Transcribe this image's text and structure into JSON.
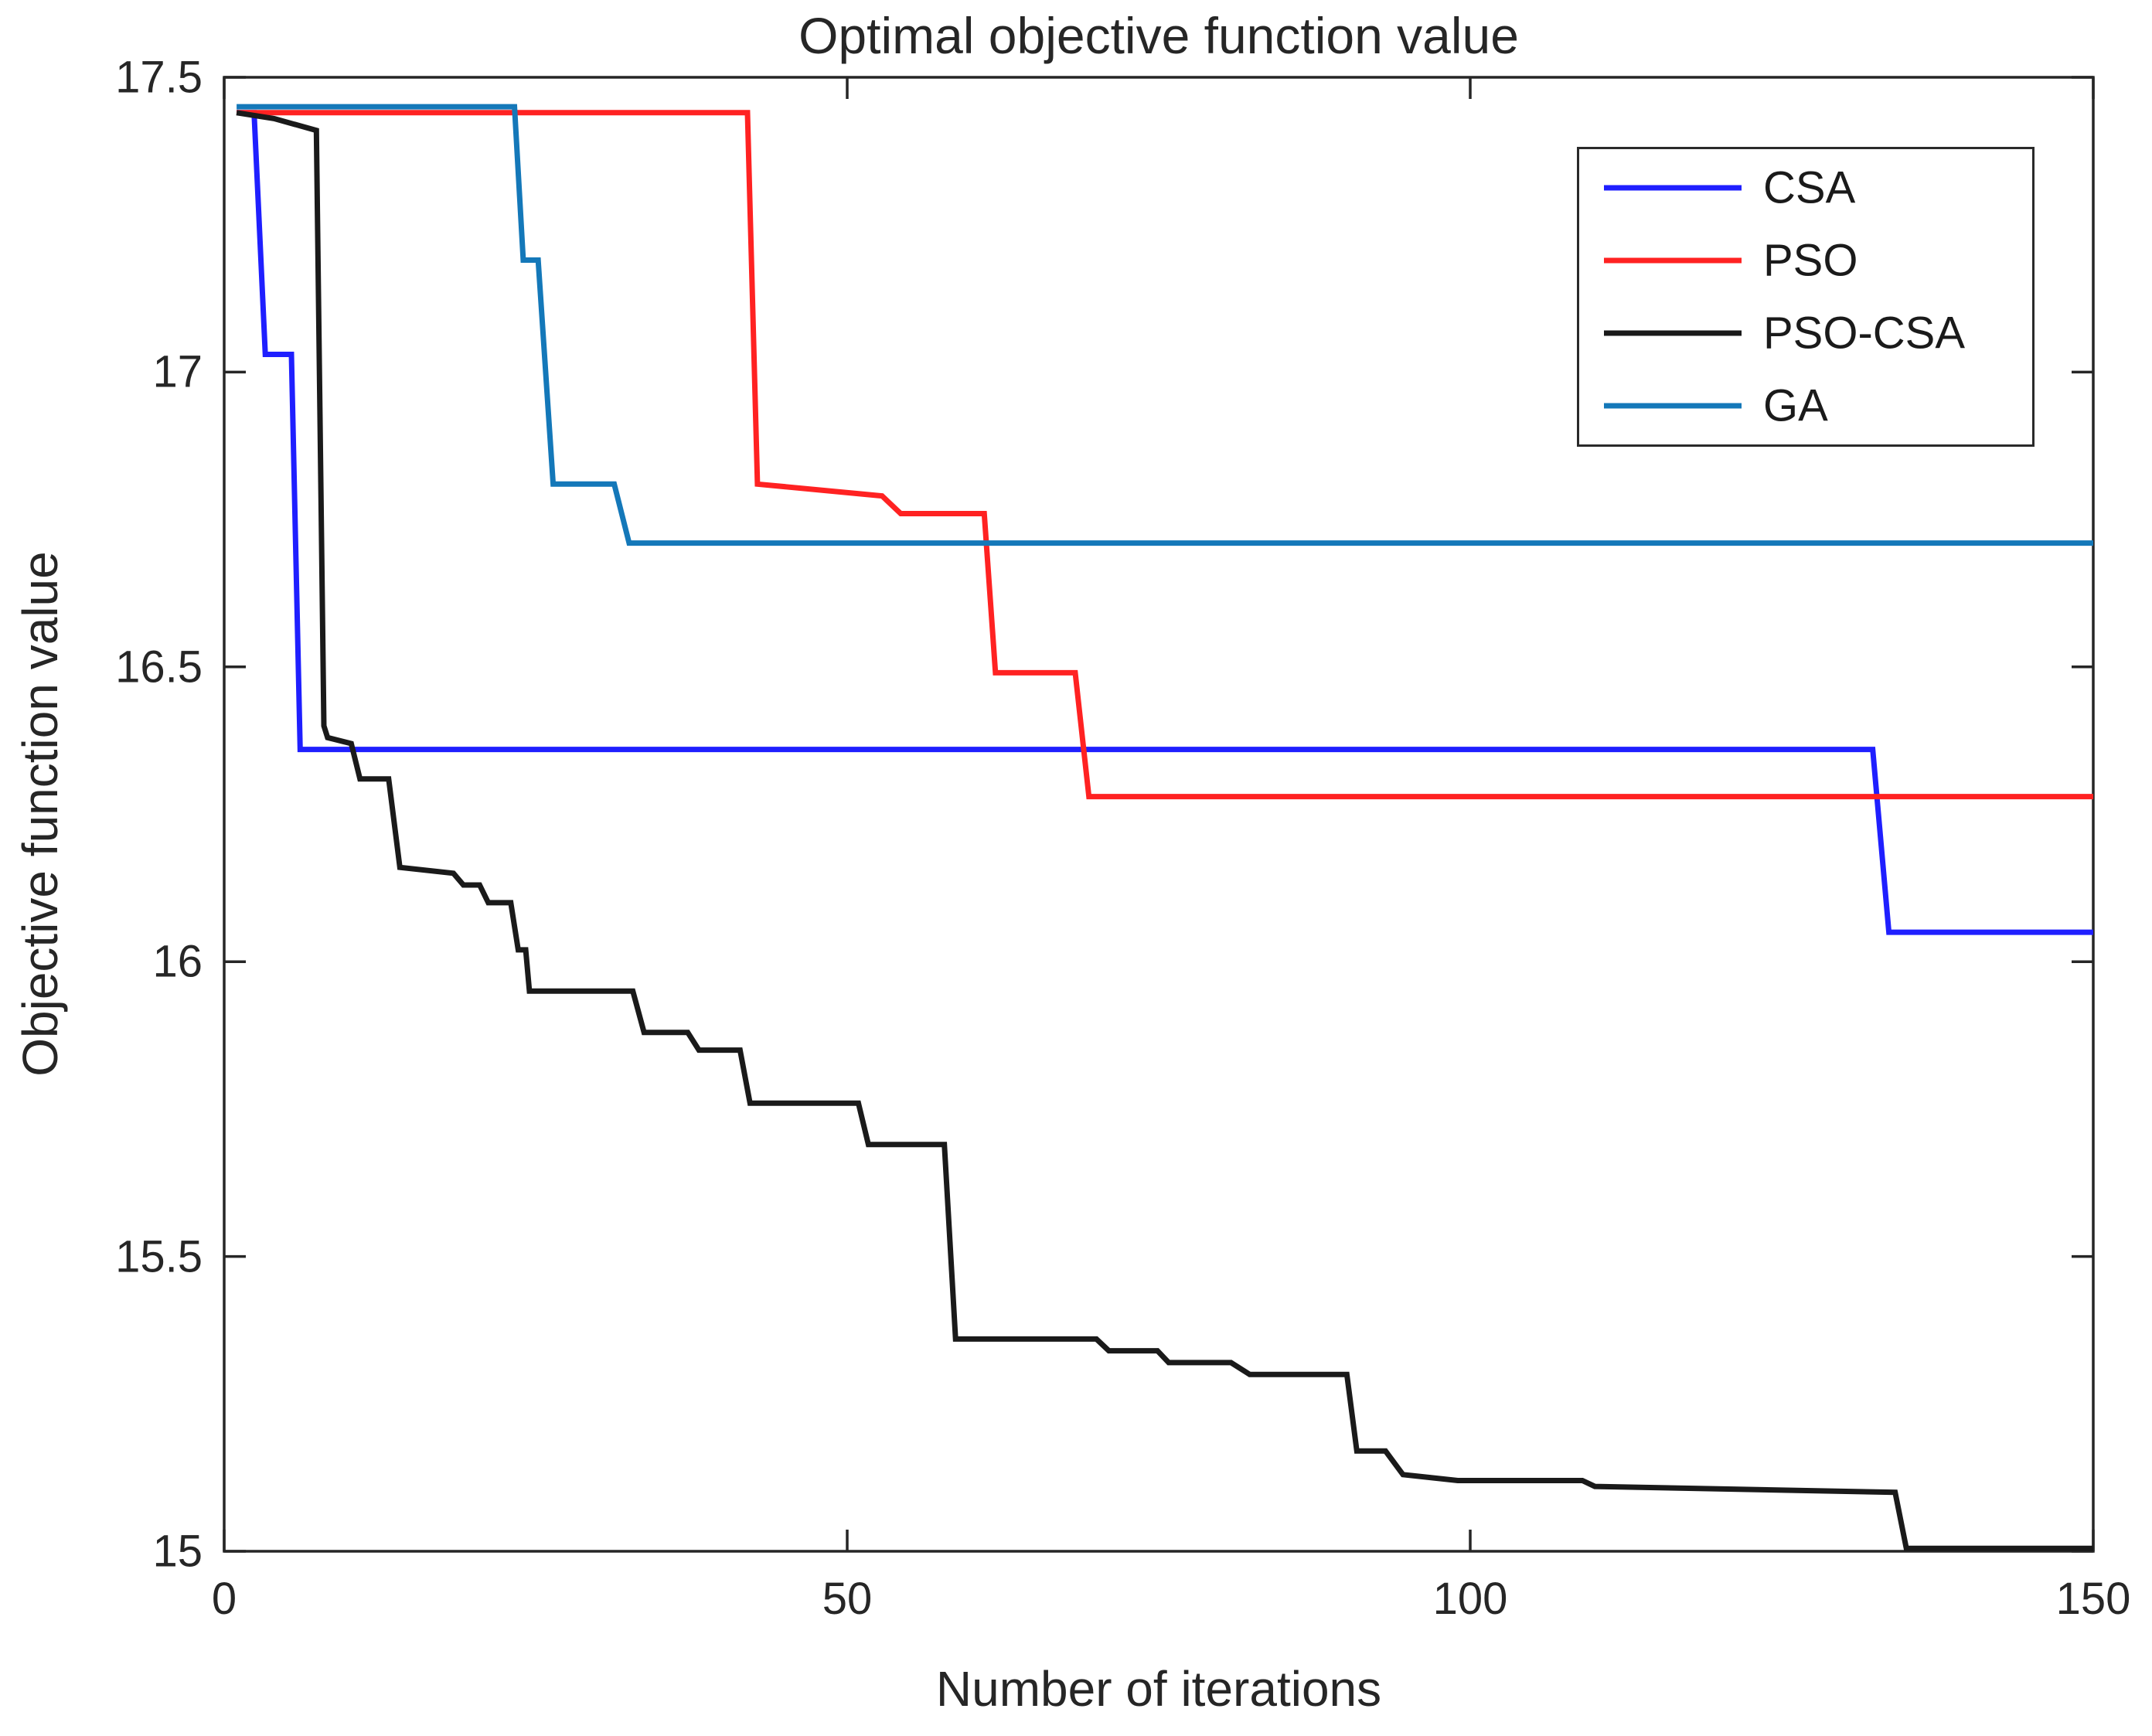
{
  "chart_data": {
    "type": "line",
    "title": "Optimal objective function value",
    "xlabel": "Number of iterations",
    "ylabel": "Objective function value",
    "xlim": [
      0,
      150
    ],
    "ylim": [
      15,
      17.5
    ],
    "x_ticks": [
      0,
      50,
      100,
      150
    ],
    "y_ticks": [
      15,
      15.5,
      16,
      16.5,
      17,
      17.5
    ],
    "grid": false,
    "legend_position": "top-right",
    "frame_color": "#262626",
    "series": [
      {
        "name": "CSA",
        "color": "#1f1fff",
        "points": [
          [
            1,
            17.44
          ],
          [
            2.4,
            17.44
          ],
          [
            3.3,
            17.03
          ],
          [
            5.4,
            17.03
          ],
          [
            6.1,
            16.36
          ],
          [
            132.3,
            16.36
          ],
          [
            133.6,
            16.05
          ],
          [
            150,
            16.05
          ]
        ]
      },
      {
        "name": "PSO",
        "color": "#ff2222",
        "points": [
          [
            1,
            17.44
          ],
          [
            42,
            17.44
          ],
          [
            42.8,
            16.81
          ],
          [
            52.8,
            16.79
          ],
          [
            54.3,
            16.76
          ],
          [
            61,
            16.76
          ],
          [
            61.9,
            16.49
          ],
          [
            68.3,
            16.49
          ],
          [
            69.4,
            16.28
          ],
          [
            150,
            16.28
          ]
        ]
      },
      {
        "name": "PSO-CSA",
        "color": "#1a1a1a",
        "points": [
          [
            1,
            17.44
          ],
          [
            4,
            17.43
          ],
          [
            7.4,
            17.41
          ],
          [
            8,
            16.4
          ],
          [
            8.3,
            16.38
          ],
          [
            10.2,
            16.37
          ],
          [
            10.9,
            16.31
          ],
          [
            13.2,
            16.31
          ],
          [
            14.1,
            16.16
          ],
          [
            18.4,
            16.15
          ],
          [
            19.2,
            16.13
          ],
          [
            20.5,
            16.13
          ],
          [
            21.2,
            16.1
          ],
          [
            23,
            16.1
          ],
          [
            23.6,
            16.02
          ],
          [
            24.2,
            16.02
          ],
          [
            24.5,
            15.95
          ],
          [
            32.8,
            15.95
          ],
          [
            33.7,
            15.88
          ],
          [
            37.2,
            15.88
          ],
          [
            38.1,
            15.85
          ],
          [
            41.4,
            15.85
          ],
          [
            42.2,
            15.76
          ],
          [
            50.9,
            15.76
          ],
          [
            51.7,
            15.69
          ],
          [
            57.8,
            15.69
          ],
          [
            58.7,
            15.36
          ],
          [
            70,
            15.36
          ],
          [
            71,
            15.34
          ],
          [
            74.9,
            15.34
          ],
          [
            75.8,
            15.32
          ],
          [
            80.8,
            15.32
          ],
          [
            82.3,
            15.3
          ],
          [
            90.1,
            15.3
          ],
          [
            90.9,
            15.17
          ],
          [
            93.2,
            15.17
          ],
          [
            94.6,
            15.13
          ],
          [
            99,
            15.12
          ],
          [
            109,
            15.12
          ],
          [
            110,
            15.11
          ],
          [
            134.1,
            15.1
          ],
          [
            135,
            15.005
          ],
          [
            150,
            15.005
          ]
        ]
      },
      {
        "name": "GA",
        "color": "#1478b9",
        "points": [
          [
            1,
            17.45
          ],
          [
            23.3,
            17.45
          ],
          [
            24,
            17.19
          ],
          [
            25.2,
            17.19
          ],
          [
            26.4,
            16.81
          ],
          [
            31.3,
            16.81
          ],
          [
            32.5,
            16.71
          ],
          [
            150,
            16.71
          ]
        ]
      }
    ]
  }
}
